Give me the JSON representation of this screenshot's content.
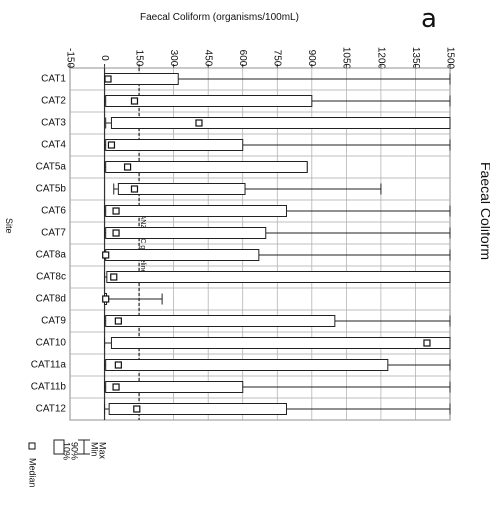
{
  "panel_letter": "a",
  "chart_data": {
    "type": "box",
    "title": "Faecal Coliform",
    "xlabel": "Faecal Coliform (organisms/100mL)",
    "ylabel": "Site",
    "xlim": [
      -150,
      1500
    ],
    "xticks": [
      "-150",
      "0",
      "150",
      "300",
      "450",
      "600",
      "750",
      "900",
      "1050",
      "1200",
      "1350",
      "1500"
    ],
    "grid": true,
    "reference_line": {
      "value": 150,
      "label": "ANZECC guideline"
    },
    "legend": {
      "placement": "bottom-left",
      "entries": [
        "Max",
        "Min",
        "90%",
        "10%",
        "Median"
      ]
    },
    "sites": [
      {
        "site": "CAT1",
        "min": 0,
        "p10": 0,
        "median": 15,
        "p90": 320,
        "max": 1500
      },
      {
        "site": "CAT2",
        "min": 0,
        "p10": 5,
        "median": 130,
        "p90": 900,
        "max": 1500
      },
      {
        "site": "CAT3",
        "min": 5,
        "p10": 30,
        "median": 410,
        "p90": 1500,
        "max": 1500
      },
      {
        "site": "CAT4",
        "min": 0,
        "p10": 5,
        "median": 30,
        "p90": 600,
        "max": 1500
      },
      {
        "site": "CAT5a",
        "min": 0,
        "p10": 5,
        "median": 100,
        "p90": 880,
        "max": 880
      },
      {
        "site": "CAT5b",
        "min": 40,
        "p10": 60,
        "median": 130,
        "p90": 610,
        "max": 1200
      },
      {
        "site": "CAT6",
        "min": 0,
        "p10": 5,
        "median": 50,
        "p90": 790,
        "max": 1500
      },
      {
        "site": "CAT7",
        "min": 0,
        "p10": 5,
        "median": 50,
        "p90": 700,
        "max": 1500
      },
      {
        "site": "CAT8a",
        "min": 0,
        "p10": 5,
        "median": 5,
        "p90": 670,
        "max": 1500
      },
      {
        "site": "CAT8c",
        "min": 0,
        "p10": 10,
        "median": 40,
        "p90": 1500,
        "max": 1500
      },
      {
        "site": "CAT8d",
        "min": 0,
        "p10": 0,
        "median": 5,
        "p90": 5,
        "max": 250
      },
      {
        "site": "CAT9",
        "min": 0,
        "p10": 5,
        "median": 60,
        "p90": 1000,
        "max": 1500
      },
      {
        "site": "CAT10",
        "min": 0,
        "p10": 30,
        "median": 1400,
        "p90": 1500,
        "max": 1500
      },
      {
        "site": "CAT11a",
        "min": 0,
        "p10": 5,
        "median": 60,
        "p90": 1230,
        "max": 1500
      },
      {
        "site": "CAT11b",
        "min": 0,
        "p10": 5,
        "median": 50,
        "p90": 600,
        "max": 1500
      },
      {
        "site": "CAT12",
        "min": 0,
        "p10": 20,
        "median": 140,
        "p90": 790,
        "max": 1500
      }
    ]
  }
}
